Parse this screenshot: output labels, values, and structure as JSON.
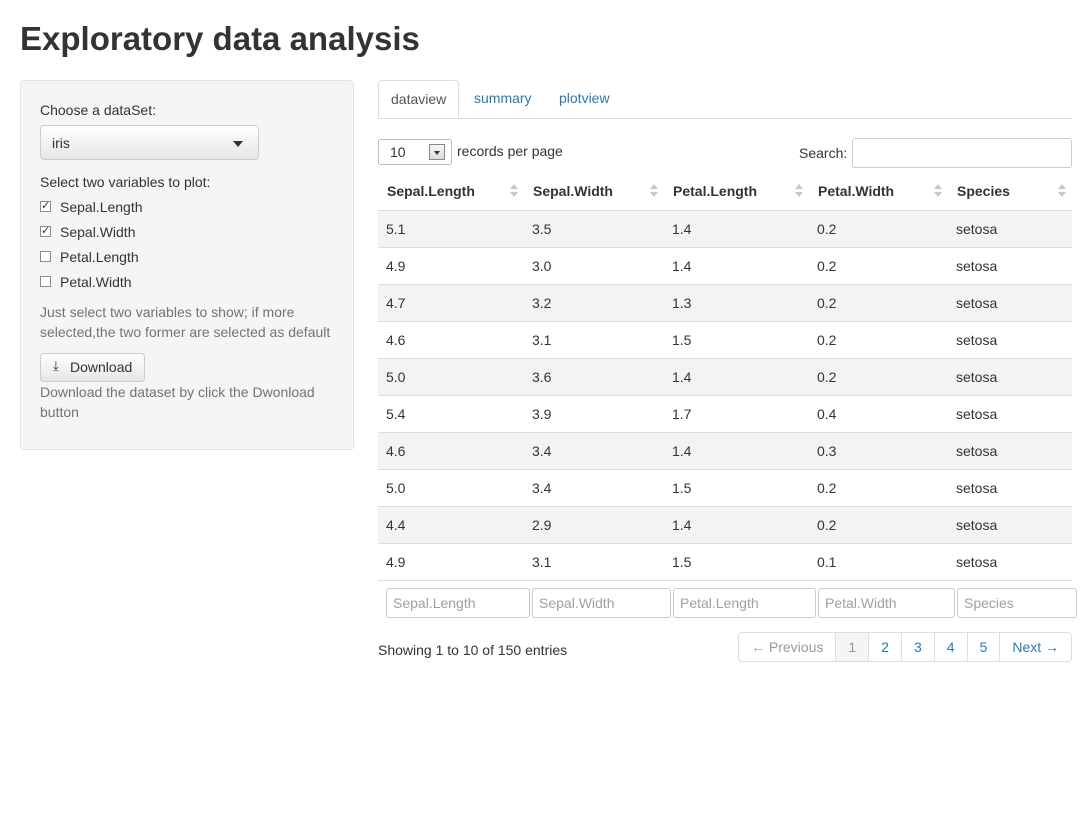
{
  "title": "Exploratory data analysis",
  "sidebar": {
    "dataset_label": "Choose a dataSet:",
    "dataset_value": "iris",
    "vars_label": "Select two variables to plot:",
    "variables": [
      {
        "label": "Sepal.Length",
        "checked": true
      },
      {
        "label": "Sepal.Width",
        "checked": true
      },
      {
        "label": "Petal.Length",
        "checked": false
      },
      {
        "label": "Petal.Width",
        "checked": false
      }
    ],
    "help_select": "Just select two variables to show; if more selected,the two former are selected as default",
    "download_label": "Download",
    "download_icon": "download-icon",
    "help_download": "Download the dataset by click the Dwonload button"
  },
  "tabs": [
    {
      "label": "dataview",
      "active": true
    },
    {
      "label": "summary",
      "active": false
    },
    {
      "label": "plotview",
      "active": false
    }
  ],
  "table_controls": {
    "length_value": "10",
    "length_text": "records per page",
    "search_label": "Search:",
    "search_value": ""
  },
  "table": {
    "columns": [
      "Sepal.Length",
      "Sepal.Width",
      "Petal.Length",
      "Petal.Width",
      "Species"
    ],
    "rows": [
      [
        "5.1",
        "3.5",
        "1.4",
        "0.2",
        "setosa"
      ],
      [
        "4.9",
        "3.0",
        "1.4",
        "0.2",
        "setosa"
      ],
      [
        "4.7",
        "3.2",
        "1.3",
        "0.2",
        "setosa"
      ],
      [
        "4.6",
        "3.1",
        "1.5",
        "0.2",
        "setosa"
      ],
      [
        "5.0",
        "3.6",
        "1.4",
        "0.2",
        "setosa"
      ],
      [
        "5.4",
        "3.9",
        "1.7",
        "0.4",
        "setosa"
      ],
      [
        "4.6",
        "3.4",
        "1.4",
        "0.3",
        "setosa"
      ],
      [
        "5.0",
        "3.4",
        "1.5",
        "0.2",
        "setosa"
      ],
      [
        "4.4",
        "2.9",
        "1.4",
        "0.2",
        "setosa"
      ],
      [
        "4.9",
        "3.1",
        "1.5",
        "0.1",
        "setosa"
      ]
    ],
    "filter_placeholders": [
      "Sepal.Length",
      "Sepal.Width",
      "Petal.Length",
      "Petal.Width",
      "Species"
    ]
  },
  "info_text": "Showing 1 to 10 of 150 entries",
  "pagination": {
    "previous": "← Previous",
    "pages": [
      "1",
      "2",
      "3",
      "4",
      "5"
    ],
    "current": "1",
    "next": "Next →"
  },
  "colors": {
    "link": "#2a7ab0",
    "well_bg": "#f5f5f5",
    "odd_row": "#f3f3f3"
  }
}
